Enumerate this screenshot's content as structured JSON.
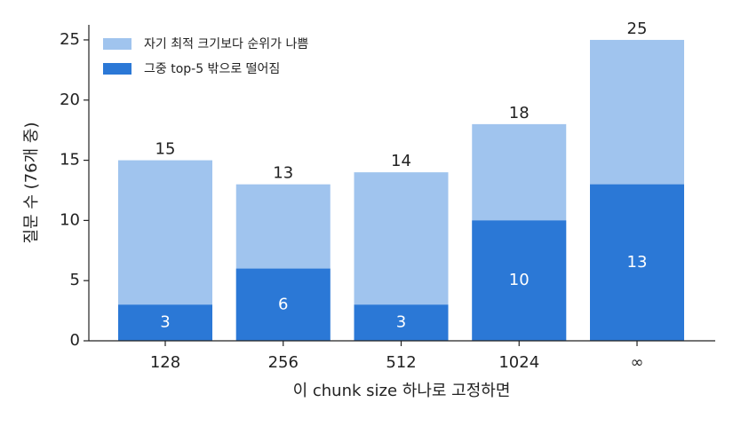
{
  "chart_data": {
    "type": "overlap-bar",
    "categories": [
      "128",
      "256",
      "512",
      "1024",
      "∞"
    ],
    "series": [
      {
        "name": "자기 최적 크기보다 순위가 나쁨",
        "color": "#a0c4ee",
        "values": [
          15,
          13,
          14,
          18,
          25
        ]
      },
      {
        "name": "그중 top-5 밖으로 떨어짐",
        "color": "#2b78d6",
        "values": [
          3,
          6,
          3,
          10,
          13
        ]
      }
    ],
    "xlabel": "이 chunk size 하나로 고정하면",
    "ylabel": "질문 수 (76개 중)",
    "ylim": [
      0,
      26.25
    ],
    "yticks": [
      0,
      5,
      10,
      15,
      20,
      25
    ],
    "legend": "upper-left"
  }
}
